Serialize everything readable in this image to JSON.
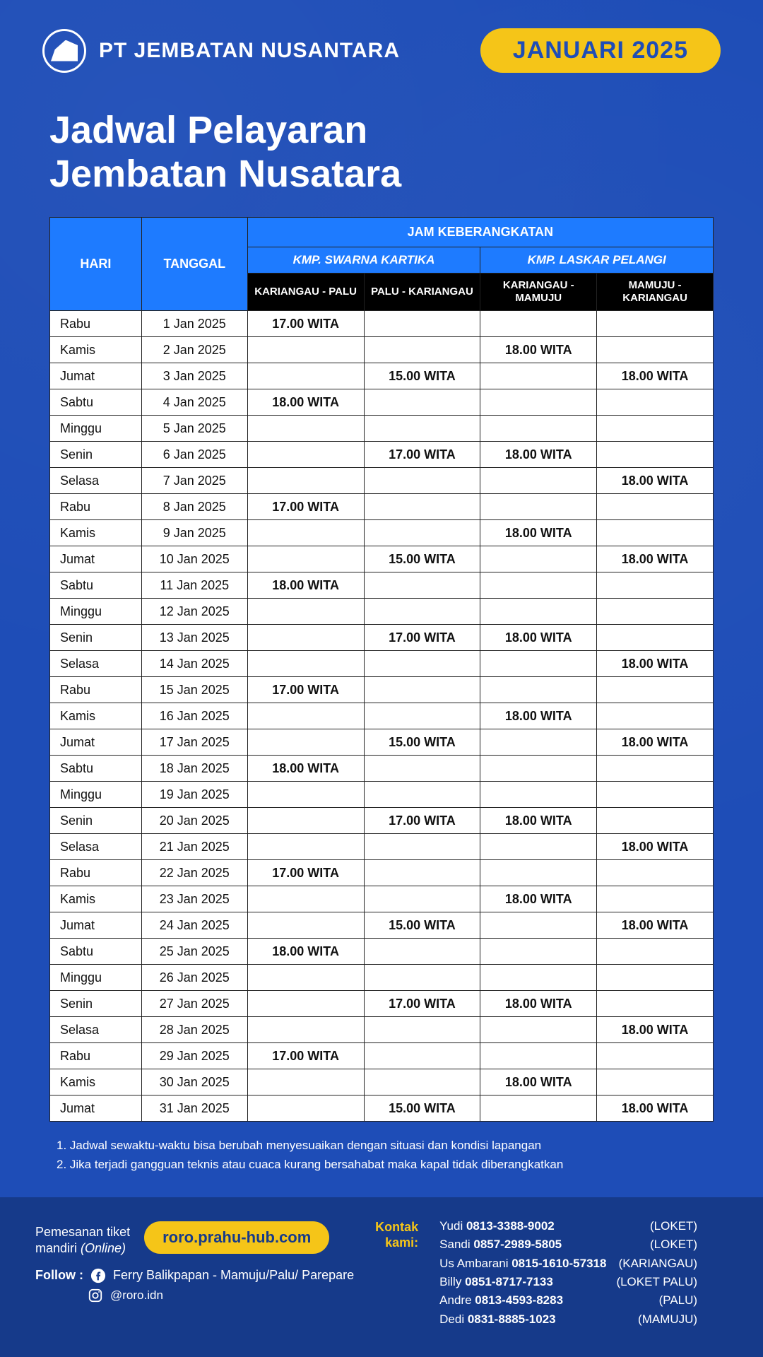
{
  "colors": {
    "page_bg": "#1e4db7",
    "header_blue": "#1e7bff",
    "route_black": "#000000",
    "accent_yellow": "#f5c518",
    "footer_bg": "#163a8a",
    "table_border": "#222222",
    "white": "#ffffff"
  },
  "header": {
    "company": "PT JEMBATAN NUSANTARA",
    "month_label": "JANUARI 2025"
  },
  "title": {
    "line1": "Jadwal Pelayaran",
    "line2": "Jembatan Nusatara"
  },
  "table": {
    "col_hari": "HARI",
    "col_tanggal": "TANGGAL",
    "col_jam": "JAM KEBERANGKATAN",
    "ship1": "KMP. SWARNA KARTIKA",
    "ship2": "KMP. LASKAR PELANGI",
    "route1": "KARIANGAU - PALU",
    "route2": "PALU - KARIANGAU",
    "route3": "KARIANGAU - MAMUJU",
    "route4": "MAMUJU - KARIANGAU",
    "rows": [
      {
        "day": "Rabu",
        "date": "1 Jan 2025",
        "t1": "17.00 WITA",
        "t2": "",
        "t3": "",
        "t4": ""
      },
      {
        "day": "Kamis",
        "date": "2 Jan 2025",
        "t1": "",
        "t2": "",
        "t3": "18.00 WITA",
        "t4": ""
      },
      {
        "day": "Jumat",
        "date": "3 Jan 2025",
        "t1": "",
        "t2": "15.00 WITA",
        "t3": "",
        "t4": "18.00 WITA"
      },
      {
        "day": "Sabtu",
        "date": "4 Jan 2025",
        "t1": "18.00 WITA",
        "t2": "",
        "t3": "",
        "t4": ""
      },
      {
        "day": "Minggu",
        "date": "5 Jan 2025",
        "t1": "",
        "t2": "",
        "t3": "",
        "t4": ""
      },
      {
        "day": "Senin",
        "date": "6 Jan 2025",
        "t1": "",
        "t2": "17.00 WITA",
        "t3": "18.00 WITA",
        "t4": ""
      },
      {
        "day": "Selasa",
        "date": "7 Jan 2025",
        "t1": "",
        "t2": "",
        "t3": "",
        "t4": "18.00 WITA"
      },
      {
        "day": "Rabu",
        "date": "8 Jan 2025",
        "t1": "17.00 WITA",
        "t2": "",
        "t3": "",
        "t4": ""
      },
      {
        "day": "Kamis",
        "date": "9 Jan 2025",
        "t1": "",
        "t2": "",
        "t3": "18.00 WITA",
        "t4": ""
      },
      {
        "day": "Jumat",
        "date": "10 Jan 2025",
        "t1": "",
        "t2": "15.00 WITA",
        "t3": "",
        "t4": "18.00 WITA"
      },
      {
        "day": "Sabtu",
        "date": "11 Jan 2025",
        "t1": "18.00 WITA",
        "t2": "",
        "t3": "",
        "t4": ""
      },
      {
        "day": "Minggu",
        "date": "12 Jan 2025",
        "t1": "",
        "t2": "",
        "t3": "",
        "t4": ""
      },
      {
        "day": "Senin",
        "date": "13 Jan 2025",
        "t1": "",
        "t2": "17.00 WITA",
        "t3": "18.00 WITA",
        "t4": ""
      },
      {
        "day": "Selasa",
        "date": "14 Jan 2025",
        "t1": "",
        "t2": "",
        "t3": "",
        "t4": "18.00 WITA"
      },
      {
        "day": "Rabu",
        "date": "15 Jan 2025",
        "t1": "17.00 WITA",
        "t2": "",
        "t3": "",
        "t4": ""
      },
      {
        "day": "Kamis",
        "date": "16 Jan 2025",
        "t1": "",
        "t2": "",
        "t3": "18.00 WITA",
        "t4": ""
      },
      {
        "day": "Jumat",
        "date": "17 Jan 2025",
        "t1": "",
        "t2": "15.00 WITA",
        "t3": "",
        "t4": "18.00 WITA"
      },
      {
        "day": "Sabtu",
        "date": "18 Jan 2025",
        "t1": "18.00 WITA",
        "t2": "",
        "t3": "",
        "t4": ""
      },
      {
        "day": "Minggu",
        "date": "19 Jan 2025",
        "t1": "",
        "t2": "",
        "t3": "",
        "t4": ""
      },
      {
        "day": "Senin",
        "date": "20 Jan 2025",
        "t1": "",
        "t2": "17.00 WITA",
        "t3": "18.00 WITA",
        "t4": ""
      },
      {
        "day": "Selasa",
        "date": "21 Jan 2025",
        "t1": "",
        "t2": "",
        "t3": "",
        "t4": "18.00 WITA"
      },
      {
        "day": "Rabu",
        "date": "22 Jan 2025",
        "t1": "17.00 WITA",
        "t2": "",
        "t3": "",
        "t4": ""
      },
      {
        "day": "Kamis",
        "date": "23 Jan 2025",
        "t1": "",
        "t2": "",
        "t3": "18.00 WITA",
        "t4": ""
      },
      {
        "day": "Jumat",
        "date": "24 Jan 2025",
        "t1": "",
        "t2": "15.00 WITA",
        "t3": "",
        "t4": "18.00 WITA"
      },
      {
        "day": "Sabtu",
        "date": "25 Jan 2025",
        "t1": "18.00 WITA",
        "t2": "",
        "t3": "",
        "t4": ""
      },
      {
        "day": "Minggu",
        "date": "26 Jan 2025",
        "t1": "",
        "t2": "",
        "t3": "",
        "t4": ""
      },
      {
        "day": "Senin",
        "date": "27 Jan 2025",
        "t1": "",
        "t2": "17.00 WITA",
        "t3": "18.00 WITA",
        "t4": ""
      },
      {
        "day": "Selasa",
        "date": "28 Jan 2025",
        "t1": "",
        "t2": "",
        "t3": "",
        "t4": "18.00 WITA"
      },
      {
        "day": "Rabu",
        "date": "29 Jan 2025",
        "t1": "17.00 WITA",
        "t2": "",
        "t3": "",
        "t4": ""
      },
      {
        "day": "Kamis",
        "date": "30 Jan 2025",
        "t1": "",
        "t2": "",
        "t3": "18.00 WITA",
        "t4": ""
      },
      {
        "day": "Jumat",
        "date": "31 Jan 2025",
        "t1": "",
        "t2": "15.00 WITA",
        "t3": "",
        "t4": "18.00 WITA"
      }
    ]
  },
  "notes": {
    "n1": "1. Jadwal sewaktu-waktu bisa berubah menyesuaikan dengan situasi dan kondisi lapangan",
    "n2": "2. Jika terjadi gangguan teknis atau cuaca kurang bersahabat maka kapal tidak diberangkatkan"
  },
  "footer": {
    "online_label1": "Pemesanan tiket",
    "online_label2": "mandiri ",
    "online_label3": "(Online)",
    "url": "roro.prahu-hub.com",
    "follow_label": "Follow :",
    "fb_label": "Ferry Balikpapan - Mamuju/Palu/ Parepare",
    "ig_label": "@roro.idn",
    "kontak_label1": "Kontak",
    "kontak_label2": "kami:",
    "contacts": [
      {
        "name": "Yudi ",
        "phone": "0813-3388-9002",
        "loc": "(LOKET)"
      },
      {
        "name": "Sandi ",
        "phone": "0857-2989-5805",
        "loc": "(LOKET)"
      },
      {
        "name": "Us Ambarani ",
        "phone": "0815-1610-57318",
        "loc": "(KARIANGAU)"
      },
      {
        "name": "Billy ",
        "phone": "0851-8717-7133",
        "loc": "(LOKET PALU)"
      },
      {
        "name": "Andre ",
        "phone": "0813-4593-8283",
        "loc": "(PALU)"
      },
      {
        "name": "Dedi ",
        "phone": "0831-8885-1023",
        "loc": "(MAMUJU)"
      }
    ]
  }
}
